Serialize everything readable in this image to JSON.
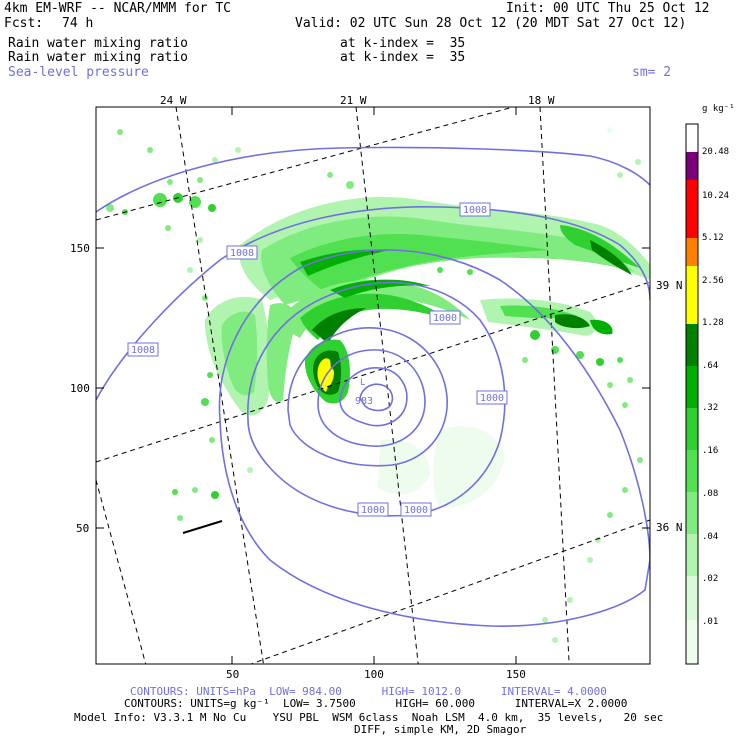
{
  "header": {
    "model": "4km EM-WRF -- NCAR/MMM for TC",
    "init": "Init: 00 UTC Thu 25 Oct 12",
    "fcst_label": "Fcst:",
    "fcst_value": "74 h",
    "valid": "Valid: 02 UTC Sun 28 Oct 12 (20 MDT Sat 27 Oct 12)",
    "field1": "Rain water mixing ratio",
    "field1_level": "at k-index =  35",
    "field2": "Rain water mixing ratio",
    "field2_level": "at k-index =  35",
    "field3": "Sea-level pressure",
    "smoothing": "sm= 2"
  },
  "axes": {
    "x_ticks": [
      "50",
      "100",
      "150"
    ],
    "y_ticks": [
      "150",
      "100",
      "50"
    ],
    "lon_labels": [
      "24 W",
      "21 W",
      "18 W"
    ],
    "lat_labels": [
      "39 N",
      "36 N"
    ]
  },
  "colorbar": {
    "unit": "g kg⁻¹",
    "levels": [
      "20.48",
      "10.24",
      "5.12",
      "2.56",
      "1.28",
      ".64",
      ".32",
      ".16",
      ".08",
      ".04",
      ".02",
      ".01"
    ],
    "colors": [
      "#7a007a",
      "#ff0000",
      "#ff8000",
      "#ffff00",
      "#008000",
      "#00b000",
      "#30d030",
      "#50e050",
      "#80ec80",
      "#b0f4b0",
      "#d8fad8",
      "#eefcee",
      "#ffffff"
    ]
  },
  "isobars": {
    "labels": [
      "1008",
      "1008",
      "1008",
      "1000",
      "1000",
      "1000",
      "1000",
      "983"
    ],
    "center_marker": "L",
    "color": "#7070e0"
  },
  "footer": {
    "line1": "CONTOURS: UNITS=hPa  LOW= 984.00      HIGH= 1012.0      INTERVAL= 4.0000",
    "line2": "CONTOURS: UNITS=g kg⁻¹  LOW= 3.7500      HIGH= 60.000      INTERVAL=X 2.0000",
    "line3": "Model Info: V3.3.1 M No Cu    YSU PBL  WSM 6class  Noah LSM  4.0 km,  35 levels,   20 sec",
    "line4": "DIFF, simple KM, 2D Smagor"
  }
}
